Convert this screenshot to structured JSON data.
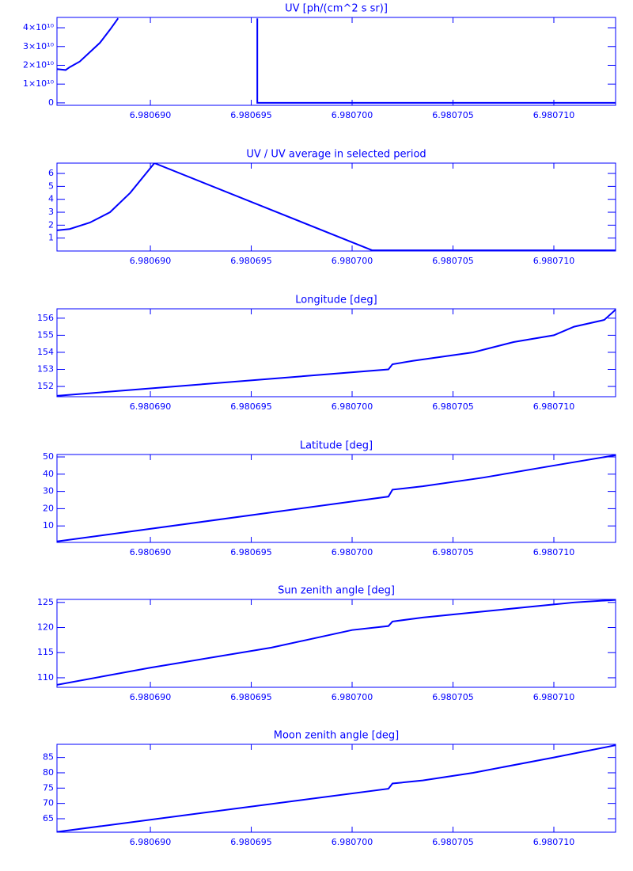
{
  "chart_data": [
    {
      "type": "line",
      "title": "UV [ph/(cm^2 s sr)]",
      "color": "#0000ff",
      "x": [
        6.98068537,
        6.9806858,
        6.980686,
        6.9806865,
        6.980687,
        6.9806875,
        6.980688,
        6.9806884,
        null,
        6.9806953,
        6.9806953,
        6.9807,
        6.98071306
      ],
      "values": [
        18000000000.0,
        17500000000.0,
        19000000000.0,
        22000000000.0,
        27000000000.0,
        32000000000.0,
        39000000000.0,
        45000000000.0,
        null,
        45000000000.0,
        0,
        0,
        0
      ],
      "xlim": [
        6.98068537,
        6.98071306
      ],
      "ylim": [
        -1300000000.0,
        45500000000.0
      ],
      "xticks": [
        {
          "value": 6.98069,
          "label": "6.980690"
        },
        {
          "value": 6.980695,
          "label": "6.980695"
        },
        {
          "value": 6.9807,
          "label": "6.980700"
        },
        {
          "value": 6.980705,
          "label": "6.980705"
        },
        {
          "value": 6.98071,
          "label": "6.980710"
        }
      ],
      "yticks": [
        0,
        {
          "value": 10000000000.0,
          "label": "1×10¹⁰"
        },
        {
          "value": 20000000000.0,
          "label": "2×10¹⁰"
        },
        {
          "value": 30000000000.0,
          "label": "3×10¹⁰"
        },
        {
          "value": 40000000000.0,
          "label": "4×10¹⁰"
        }
      ]
    },
    {
      "type": "line",
      "title": "UV / UV average in selected period",
      "color": "#0000ff",
      "x": [
        6.98068537,
        6.980686,
        6.980687,
        6.980688,
        6.980689,
        6.9806902,
        6.980701,
        6.98071306
      ],
      "values": [
        1.6,
        1.7,
        2.2,
        3.0,
        4.5,
        6.8,
        0.05,
        0.05
      ],
      "xlim": [
        6.98068537,
        6.98071306
      ],
      "ylim": [
        0,
        6.8
      ],
      "xticks": [
        {
          "value": 6.98069,
          "label": "6.980690"
        },
        {
          "value": 6.980695,
          "label": "6.980695"
        },
        {
          "value": 6.9807,
          "label": "6.980700"
        },
        {
          "value": 6.980705,
          "label": "6.980705"
        },
        {
          "value": 6.98071,
          "label": "6.980710"
        }
      ],
      "yticks": [
        1,
        2,
        3,
        4,
        5,
        6
      ]
    },
    {
      "type": "line",
      "title": "Longitude [deg]",
      "color": "#0000ff",
      "x": [
        6.98068537,
        6.9807018,
        6.980702,
        6.980703,
        6.980706,
        6.980708,
        6.98071,
        6.980711,
        6.9807125,
        6.98071306
      ],
      "values": [
        151.45,
        153.0,
        153.3,
        153.5,
        154.0,
        154.6,
        155.0,
        155.5,
        155.9,
        156.5
      ],
      "xlim": [
        6.98068537,
        6.98071306
      ],
      "ylim": [
        151.4,
        156.55
      ],
      "xticks": [
        {
          "value": 6.98069,
          "label": "6.980690"
        },
        {
          "value": 6.980695,
          "label": "6.980695"
        },
        {
          "value": 6.9807,
          "label": "6.980700"
        },
        {
          "value": 6.980705,
          "label": "6.980705"
        },
        {
          "value": 6.98071,
          "label": "6.980710"
        }
      ],
      "yticks": [
        152,
        153,
        154,
        155,
        156
      ]
    },
    {
      "type": "line",
      "title": "Latitude [deg]",
      "color": "#0000ff",
      "x": [
        6.98068537,
        6.9807018,
        6.980702,
        6.9807035,
        6.9807065,
        6.98071,
        6.98071306
      ],
      "values": [
        1,
        27,
        31,
        33,
        38,
        45,
        51
      ],
      "xlim": [
        6.98068537,
        6.98071306
      ],
      "ylim": [
        0.45,
        51.4
      ],
      "xticks": [
        {
          "value": 6.98069,
          "label": "6.980690"
        },
        {
          "value": 6.980695,
          "label": "6.980695"
        },
        {
          "value": 6.9807,
          "label": "6.980700"
        },
        {
          "value": 6.980705,
          "label": "6.980705"
        },
        {
          "value": 6.98071,
          "label": "6.980710"
        }
      ],
      "yticks": [
        10,
        20,
        30,
        40,
        50
      ]
    },
    {
      "type": "line",
      "title": "Sun zenith angle [deg]",
      "color": "#0000ff",
      "x": [
        6.98068537,
        6.98069,
        6.980696,
        6.9807,
        6.9807018,
        6.980702,
        6.9807035,
        6.980706,
        6.9807085,
        6.980711,
        6.98071306
      ],
      "values": [
        108.6,
        112,
        116,
        119.5,
        120.3,
        121.2,
        122,
        123,
        124,
        125,
        125.5
      ],
      "xlim": [
        6.98068537,
        6.98071306
      ],
      "ylim": [
        108.1,
        125.6
      ],
      "xticks": [
        {
          "value": 6.98069,
          "label": "6.980690"
        },
        {
          "value": 6.980695,
          "label": "6.980695"
        },
        {
          "value": 6.9807,
          "label": "6.980700"
        },
        {
          "value": 6.980705,
          "label": "6.980705"
        },
        {
          "value": 6.98071,
          "label": "6.980710"
        }
      ],
      "yticks": [
        110,
        115,
        120,
        125
      ]
    },
    {
      "type": "line",
      "title": "Moon zenith angle [deg]",
      "color": "#0000ff",
      "x": [
        6.98068537,
        6.9807018,
        6.980702,
        6.9807035,
        6.980706,
        6.98071,
        6.98071306
      ],
      "values": [
        60.7,
        74.8,
        76.5,
        77.5,
        80,
        85,
        89
      ],
      "xlim": [
        6.98068537,
        6.98071306
      ],
      "ylim": [
        60.6,
        89.3
      ],
      "xticks": [
        {
          "value": 6.98069,
          "label": "6.980690"
        },
        {
          "value": 6.980695,
          "label": "6.980695"
        },
        {
          "value": 6.9807,
          "label": "6.980700"
        },
        {
          "value": 6.980705,
          "label": "6.980705"
        },
        {
          "value": 6.98071,
          "label": "6.980710"
        }
      ],
      "yticks": [
        65,
        70,
        75,
        80,
        85
      ]
    }
  ]
}
